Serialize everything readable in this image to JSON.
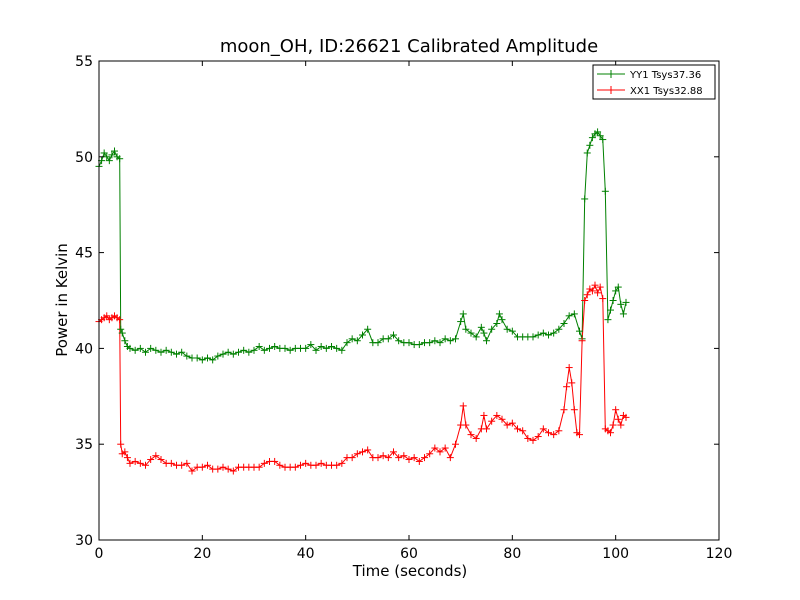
{
  "chart_data": {
    "type": "line",
    "title": "moon_OH, ID:26621 Calibrated Amplitude",
    "xlabel": "Time (seconds)",
    "ylabel": "Power in Kelvin",
    "xlim": [
      0,
      120
    ],
    "ylim": [
      30,
      55
    ],
    "xticks": [
      0,
      20,
      40,
      60,
      80,
      100,
      120
    ],
    "yticks": [
      30,
      35,
      40,
      45,
      50,
      55
    ],
    "grid": false,
    "legend_position": "top-right",
    "series": [
      {
        "name": "YY1 Tsys37.36",
        "color": "#008000",
        "marker": "+",
        "points": [
          [
            0,
            49.5
          ],
          [
            0.5,
            49.8
          ],
          [
            1,
            50.2
          ],
          [
            1.5,
            50.0
          ],
          [
            2,
            49.8
          ],
          [
            2.5,
            50.1
          ],
          [
            3,
            50.3
          ],
          [
            3.5,
            50.0
          ],
          [
            4,
            49.9
          ],
          [
            4.2,
            41.0
          ],
          [
            4.5,
            40.8
          ],
          [
            5,
            40.4
          ],
          [
            5.5,
            40.1
          ],
          [
            6,
            40.0
          ],
          [
            7,
            39.9
          ],
          [
            8,
            40.0
          ],
          [
            9,
            39.8
          ],
          [
            10,
            40.0
          ],
          [
            11,
            39.9
          ],
          [
            12,
            39.8
          ],
          [
            13,
            39.9
          ],
          [
            14,
            39.8
          ],
          [
            15,
            39.7
          ],
          [
            16,
            39.8
          ],
          [
            17,
            39.6
          ],
          [
            18,
            39.5
          ],
          [
            19,
            39.5
          ],
          [
            20,
            39.4
          ],
          [
            21,
            39.5
          ],
          [
            22,
            39.4
          ],
          [
            23,
            39.6
          ],
          [
            24,
            39.7
          ],
          [
            25,
            39.8
          ],
          [
            26,
            39.7
          ],
          [
            27,
            39.8
          ],
          [
            28,
            39.9
          ],
          [
            29,
            39.8
          ],
          [
            30,
            39.9
          ],
          [
            31,
            40.1
          ],
          [
            32,
            39.9
          ],
          [
            33,
            40.0
          ],
          [
            34,
            40.1
          ],
          [
            35,
            40.0
          ],
          [
            36,
            40.0
          ],
          [
            37,
            39.9
          ],
          [
            38,
            40.0
          ],
          [
            39,
            40.0
          ],
          [
            40,
            40.0
          ],
          [
            41,
            40.2
          ],
          [
            42,
            39.9
          ],
          [
            43,
            40.1
          ],
          [
            44,
            40.0
          ],
          [
            45,
            40.1
          ],
          [
            46,
            40.0
          ],
          [
            47,
            39.9
          ],
          [
            48,
            40.3
          ],
          [
            49,
            40.5
          ],
          [
            50,
            40.4
          ],
          [
            51,
            40.7
          ],
          [
            52,
            41.0
          ],
          [
            53,
            40.3
          ],
          [
            54,
            40.3
          ],
          [
            55,
            40.5
          ],
          [
            56,
            40.5
          ],
          [
            57,
            40.7
          ],
          [
            58,
            40.4
          ],
          [
            59,
            40.3
          ],
          [
            60,
            40.3
          ],
          [
            61,
            40.2
          ],
          [
            62,
            40.2
          ],
          [
            63,
            40.3
          ],
          [
            64,
            40.3
          ],
          [
            65,
            40.4
          ],
          [
            66,
            40.3
          ],
          [
            67,
            40.5
          ],
          [
            68,
            40.4
          ],
          [
            69,
            40.5
          ],
          [
            70,
            41.4
          ],
          [
            70.5,
            41.8
          ],
          [
            71,
            41.0
          ],
          [
            72,
            40.8
          ],
          [
            73,
            40.6
          ],
          [
            74,
            41.1
          ],
          [
            74.5,
            40.8
          ],
          [
            75,
            40.4
          ],
          [
            76,
            41.0
          ],
          [
            77,
            41.3
          ],
          [
            77.5,
            41.8
          ],
          [
            78,
            41.5
          ],
          [
            79,
            41.0
          ],
          [
            80,
            40.9
          ],
          [
            81,
            40.6
          ],
          [
            82,
            40.6
          ],
          [
            83,
            40.6
          ],
          [
            84,
            40.6
          ],
          [
            85,
            40.7
          ],
          [
            86,
            40.8
          ],
          [
            87,
            40.7
          ],
          [
            88,
            40.8
          ],
          [
            89,
            41.0
          ],
          [
            90,
            41.3
          ],
          [
            91,
            41.7
          ],
          [
            92,
            41.8
          ],
          [
            93,
            40.9
          ],
          [
            93.5,
            40.5
          ],
          [
            94,
            47.8
          ],
          [
            94.5,
            50.2
          ],
          [
            95,
            50.6
          ],
          [
            95.5,
            51.0
          ],
          [
            96,
            51.2
          ],
          [
            96.5,
            51.3
          ],
          [
            97,
            51.1
          ],
          [
            97.5,
            50.9
          ],
          [
            98,
            48.2
          ],
          [
            98.5,
            41.5
          ],
          [
            99,
            42.0
          ],
          [
            99.5,
            42.5
          ],
          [
            100,
            43.0
          ],
          [
            100.5,
            43.2
          ],
          [
            101,
            42.3
          ],
          [
            101.5,
            41.8
          ],
          [
            102,
            42.4
          ]
        ]
      },
      {
        "name": "XX1 Tsys32.88",
        "color": "#ff0000",
        "marker": "+",
        "points": [
          [
            0,
            41.4
          ],
          [
            0.5,
            41.5
          ],
          [
            1,
            41.6
          ],
          [
            1.5,
            41.7
          ],
          [
            2,
            41.5
          ],
          [
            2.5,
            41.6
          ],
          [
            3,
            41.7
          ],
          [
            3.5,
            41.6
          ],
          [
            4,
            41.5
          ],
          [
            4.2,
            35.0
          ],
          [
            4.5,
            34.5
          ],
          [
            5,
            34.6
          ],
          [
            5.5,
            34.3
          ],
          [
            6,
            34.0
          ],
          [
            7,
            34.1
          ],
          [
            8,
            34.0
          ],
          [
            9,
            33.9
          ],
          [
            10,
            34.2
          ],
          [
            11,
            34.4
          ],
          [
            12,
            34.2
          ],
          [
            13,
            34.0
          ],
          [
            14,
            34.0
          ],
          [
            15,
            33.9
          ],
          [
            16,
            33.9
          ],
          [
            17,
            34.0
          ],
          [
            18,
            33.6
          ],
          [
            19,
            33.8
          ],
          [
            20,
            33.8
          ],
          [
            21,
            33.9
          ],
          [
            22,
            33.7
          ],
          [
            23,
            33.7
          ],
          [
            24,
            33.8
          ],
          [
            25,
            33.7
          ],
          [
            26,
            33.6
          ],
          [
            27,
            33.8
          ],
          [
            28,
            33.8
          ],
          [
            29,
            33.8
          ],
          [
            30,
            33.8
          ],
          [
            31,
            33.8
          ],
          [
            32,
            34.0
          ],
          [
            33,
            34.1
          ],
          [
            34,
            34.1
          ],
          [
            35,
            33.9
          ],
          [
            36,
            33.8
          ],
          [
            37,
            33.8
          ],
          [
            38,
            33.8
          ],
          [
            39,
            33.9
          ],
          [
            40,
            34.0
          ],
          [
            41,
            33.9
          ],
          [
            42,
            33.9
          ],
          [
            43,
            34.0
          ],
          [
            44,
            33.9
          ],
          [
            45,
            33.9
          ],
          [
            46,
            33.9
          ],
          [
            47,
            34.0
          ],
          [
            48,
            34.3
          ],
          [
            49,
            34.3
          ],
          [
            50,
            34.5
          ],
          [
            51,
            34.6
          ],
          [
            52,
            34.7
          ],
          [
            53,
            34.3
          ],
          [
            54,
            34.3
          ],
          [
            55,
            34.4
          ],
          [
            56,
            34.3
          ],
          [
            57,
            34.6
          ],
          [
            58,
            34.3
          ],
          [
            59,
            34.4
          ],
          [
            60,
            34.2
          ],
          [
            61,
            34.3
          ],
          [
            62,
            34.1
          ],
          [
            63,
            34.3
          ],
          [
            64,
            34.5
          ],
          [
            65,
            34.8
          ],
          [
            66,
            34.6
          ],
          [
            67,
            34.8
          ],
          [
            68,
            34.3
          ],
          [
            69,
            35.0
          ],
          [
            70,
            36.0
          ],
          [
            70.5,
            37.0
          ],
          [
            71,
            36.0
          ],
          [
            72,
            35.5
          ],
          [
            73,
            35.3
          ],
          [
            74,
            35.8
          ],
          [
            74.5,
            36.5
          ],
          [
            75,
            35.8
          ],
          [
            76,
            36.2
          ],
          [
            77,
            36.5
          ],
          [
            78,
            36.3
          ],
          [
            79,
            36.0
          ],
          [
            80,
            36.1
          ],
          [
            81,
            35.8
          ],
          [
            82,
            35.7
          ],
          [
            83,
            35.3
          ],
          [
            84,
            35.2
          ],
          [
            85,
            35.4
          ],
          [
            86,
            35.8
          ],
          [
            87,
            35.6
          ],
          [
            88,
            35.5
          ],
          [
            89,
            35.7
          ],
          [
            90,
            36.8
          ],
          [
            90.5,
            38.0
          ],
          [
            91,
            39.0
          ],
          [
            91.5,
            38.2
          ],
          [
            92,
            36.8
          ],
          [
            92.5,
            35.6
          ],
          [
            93,
            35.5
          ],
          [
            93.5,
            40.4
          ],
          [
            94,
            42.5
          ],
          [
            94.5,
            42.8
          ],
          [
            95,
            43.1
          ],
          [
            95.5,
            43.0
          ],
          [
            96,
            43.3
          ],
          [
            96.5,
            42.9
          ],
          [
            97,
            43.2
          ],
          [
            97.5,
            42.6
          ],
          [
            98,
            35.8
          ],
          [
            98.5,
            35.7
          ],
          [
            99,
            35.6
          ],
          [
            99.5,
            36.0
          ],
          [
            100,
            36.8
          ],
          [
            100.5,
            36.3
          ],
          [
            101,
            36.0
          ],
          [
            101.5,
            36.5
          ],
          [
            102,
            36.4
          ]
        ]
      }
    ]
  }
}
